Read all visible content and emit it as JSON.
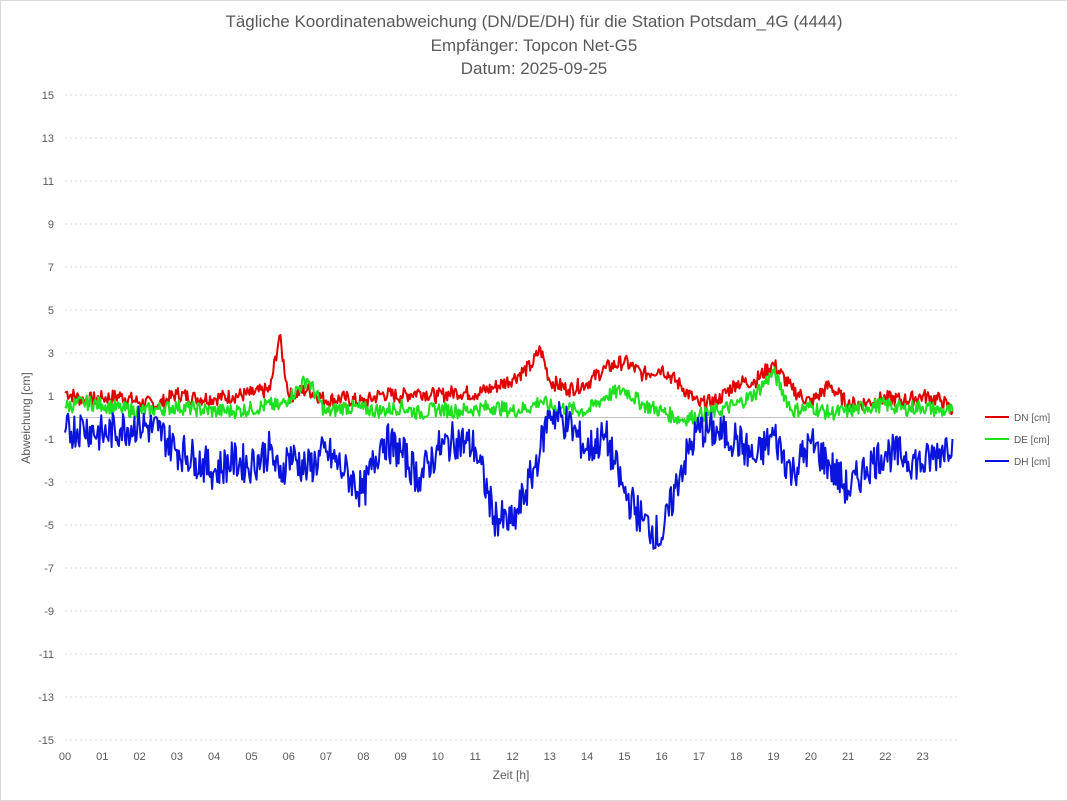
{
  "chart_data": {
    "type": "line",
    "title": [
      "Tägliche Koordinatenabweichung (DN/DE/DH) für die Station Potsdam_4G (4444)",
      "Empfänger: Topcon Net-G5",
      "Datum: 2025-09-25"
    ],
    "xlabel": "Zeit [h]",
    "ylabel": "Abweichung [cm]",
    "xlim": [
      0,
      24
    ],
    "ylim": [
      -15,
      15
    ],
    "x_ticks": [
      "00",
      "01",
      "02",
      "03",
      "04",
      "05",
      "06",
      "07",
      "08",
      "09",
      "10",
      "11",
      "12",
      "13",
      "14",
      "15",
      "16",
      "17",
      "18",
      "19",
      "20",
      "21",
      "22",
      "23"
    ],
    "y_ticks": [
      15,
      13,
      11,
      9,
      7,
      5,
      3,
      1,
      -1,
      -3,
      -5,
      -7,
      -9,
      -11,
      -13,
      -15
    ],
    "y_tick_labels": [
      "15",
      "13",
      "11",
      "9",
      "7",
      "5",
      "3",
      "1",
      "-1",
      "-3",
      "-5",
      "-7",
      "-9",
      "-11",
      "-13",
      "-15"
    ],
    "grid": true,
    "legend_position": "right",
    "x": [
      0,
      0.5,
      1,
      1.5,
      2,
      2.5,
      3,
      3.5,
      4,
      4.5,
      5,
      5.5,
      5.75,
      6,
      6.5,
      7,
      7.5,
      8,
      8.5,
      9,
      9.5,
      10,
      10.5,
      11,
      11.5,
      12,
      12.5,
      12.75,
      13,
      13.5,
      14,
      14.5,
      15,
      15.5,
      16,
      16.5,
      17,
      17.5,
      18,
      18.5,
      19,
      19.5,
      20,
      20.5,
      21,
      21.5,
      22,
      22.5,
      23,
      23.5,
      23.8
    ],
    "series": [
      {
        "name": "DN [cm]",
        "color": "#e00000",
        "values": [
          1.2,
          0.8,
          0.9,
          1.0,
          0.7,
          0.6,
          1.1,
          0.9,
          0.9,
          1.0,
          1.1,
          1.3,
          3.8,
          1.0,
          1.3,
          0.8,
          0.9,
          0.7,
          1.1,
          1.0,
          1.2,
          1.0,
          1.2,
          1.1,
          1.4,
          1.8,
          2.4,
          3.2,
          1.7,
          1.3,
          1.6,
          2.3,
          2.6,
          2.0,
          2.3,
          1.5,
          0.6,
          0.8,
          1.6,
          1.7,
          2.5,
          1.3,
          0.7,
          1.5,
          0.6,
          0.7,
          0.9,
          0.8,
          1.0,
          0.8,
          0.3
        ]
      },
      {
        "name": "DE [cm]",
        "color": "#1ee01e",
        "values": [
          0.5,
          0.7,
          0.6,
          0.4,
          0.3,
          0.4,
          0.5,
          0.4,
          0.3,
          0.3,
          0.4,
          0.6,
          0.5,
          0.9,
          1.8,
          0.2,
          0.5,
          0.4,
          0.3,
          0.5,
          0.2,
          0.4,
          0.3,
          0.4,
          0.5,
          0.3,
          0.5,
          0.8,
          0.5,
          0.4,
          0.3,
          1.0,
          1.3,
          0.6,
          0.3,
          -0.1,
          0.1,
          0.3,
          0.6,
          1.1,
          2.1,
          0.3,
          0.5,
          0.2,
          0.3,
          0.5,
          0.6,
          0.4,
          0.5,
          0.3,
          0.3
        ]
      },
      {
        "name": "DH [cm]",
        "color": "#0a14dc",
        "values": [
          -0.7,
          -0.4,
          -0.8,
          -0.5,
          -0.3,
          -0.6,
          -1.5,
          -1.9,
          -2.5,
          -2.0,
          -2.2,
          -1.5,
          -2.8,
          -1.7,
          -2.4,
          -1.6,
          -2.5,
          -3.5,
          -1.0,
          -1.6,
          -2.8,
          -1.5,
          -1.0,
          -1.4,
          -4.6,
          -5.0,
          -2.8,
          -1.4,
          0.3,
          -0.3,
          -1.5,
          -0.9,
          -3.5,
          -4.8,
          -5.6,
          -2.5,
          -0.5,
          -0.7,
          -1.0,
          -2.0,
          -0.8,
          -2.6,
          -1.2,
          -2.2,
          -3.4,
          -2.3,
          -1.6,
          -1.8,
          -2.2,
          -1.5,
          -1.0
        ]
      }
    ]
  }
}
